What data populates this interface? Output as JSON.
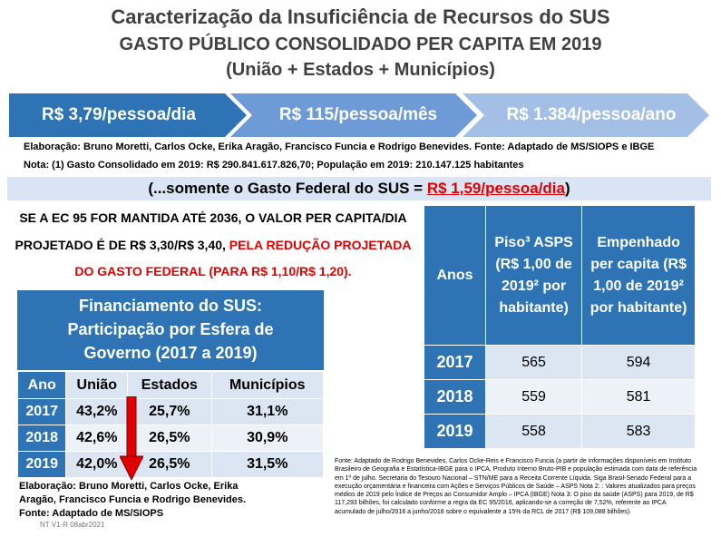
{
  "header": {
    "title": "Caracterização da Insuficiência de Recursos do SUS",
    "subtitle": "GASTO PÚBLICO CONSOLIDADO PER CAPITA EM 2019",
    "subtitle2": "(União + Estados + Municípios)"
  },
  "arrows": [
    {
      "label": "R$ 3,79/pessoa/dia",
      "color": "#2e74b5"
    },
    {
      "label": "R$ 115/pessoa/mês",
      "color": "#6e9ad6"
    },
    {
      "label": "R$ 1.384/pessoa/ano",
      "color": "#a3bfe6"
    }
  ],
  "elaboracao": "Elaboração: Bruno Moretti, Carlos Ocke, Erika Aragão, Francisco Funcia e Rodrigo Benevides. Fonte: Adaptado de MS/SIOPS e IBGE",
  "nota": "Nota: (1) Gasto Consolidado em 2019: R$ 290.841.617.826,70; População em 2019: 210.147.125 habitantes",
  "federal": {
    "prefix": "(...somente o Gasto Federal do SUS = ",
    "value": "R$ 1,59/pessoa/dia",
    "suffix": ")"
  },
  "projection": {
    "line1": "SE A EC 95 FOR MANTIDA ATÉ 2036, O VALOR PER CAPITA/DIA",
    "line2_black": "PROJETADO É DE R$ 3,30/R$ 3,40, ",
    "line2_red": "PELA REDUÇÃO PROJETADA",
    "line3_red": "DO GASTO FEDERAL (PARA R$ 1,10/R$ 1,20)."
  },
  "financiamento": {
    "title_line1": "Financiamento do SUS:",
    "title_line2": "Participação por Esfera de",
    "title_line3": "Governo (2017 a 2019)",
    "headers": [
      "Ano",
      "União",
      "Estados",
      "Municípios"
    ],
    "rows": [
      [
        "2017",
        "43,2%",
        "25,7%",
        "31,1%"
      ],
      [
        "2018",
        "42,6%",
        "26,5%",
        "30,9%"
      ],
      [
        "2019",
        "42,0%",
        "26,5%",
        "31,5%"
      ]
    ],
    "source_line1": "Elaboração: Bruno Moretti, Carlos Ocke, Erika",
    "source_line2": "Aragão, Francisco Funcia e Rodrigo Benevides.",
    "source_line3": "Fonte: Adaptado de MS/SIOPS",
    "stamp": "NT V1-R 08abr2021"
  },
  "asps": {
    "headers": [
      "Anos",
      "Piso³ ASPS (R$ 1,00 de 2019² por habitante)",
      "Empenhado per capita (R$ 1,00 de 2019² por habitante)"
    ],
    "rows": [
      [
        "2017",
        "565",
        "594"
      ],
      [
        "2018",
        "559",
        "581"
      ],
      [
        "2019",
        "558",
        "583"
      ]
    ],
    "source": "Fonte: Adaptado de Rodrigo Benevides, Carlos Ocke-Reis e Francisco Funcia.(a partir de informações disponíveis em Instituto Brasileiro de Geografia e Estatística-IBGE para o IPCA, Produto Interno Bruto-PIB e população estimada com data de referência em 1º de julho. Secretaria do Tesouro Nacional – STN/ME para a Receita Corrente Líquida. Siga Brasil-Senado Federal para a execução orçamentária e financeira com Ações e Serviços Públicos de Saúde – ASPS Nota 2: : Valores atualizados para preços médios de 2019 pelo Índice de Preços ao Consumidor Amplo – IPCA (IBGE) Nota 3: O piso da saúde (ASPS) para 2019, de R$ 117,293 bilhões, foi calculado conforme a regra da EC 95/2016, aplicando-se a correção de 7,52%, referente ao IPCA acumulado de julho/2016 a junho/2018 sobre o equivalente a 15% da RCL de 2017 (R$ 109,088 bilhões)."
  }
}
